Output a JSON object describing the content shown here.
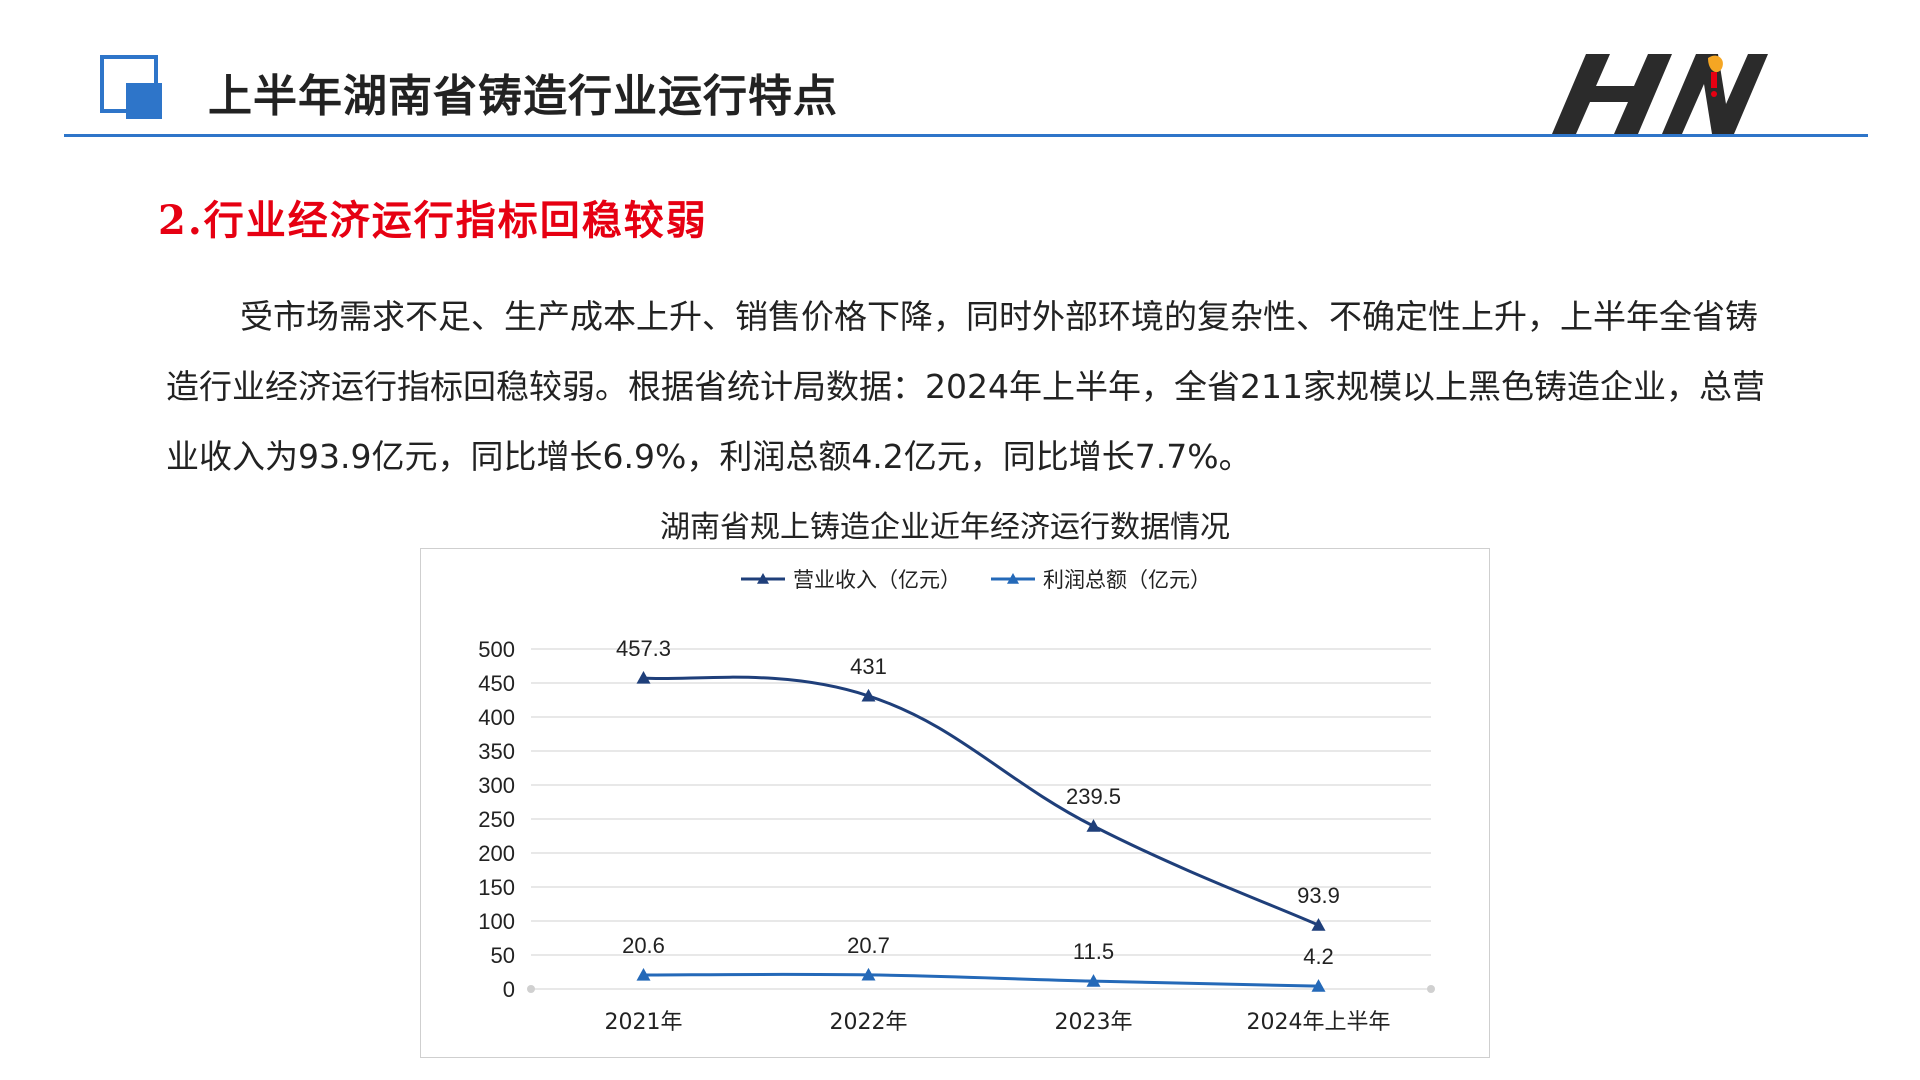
{
  "header": {
    "title": "上半年湖南省铸造行业运行特点",
    "logo_text": "HN"
  },
  "section": {
    "title": "2.行业经济运行指标回稳较弱"
  },
  "paragraph": {
    "text": "受市场需求不足、生产成本上升、销售价格下降，同时外部环境的复杂性、不确定性上升，上半年全省铸造行业经济运行指标回稳较弱。根据省统计局数据：2024年上半年，全省211家规模以上黑色铸造企业，总营业收入为93.9亿元，同比增长6.9%，利润总额4.2亿元，同比增长7.7%。"
  },
  "colors": {
    "accent": "#2e75c9",
    "section_title": "#e60012",
    "revenue_series": "#1f3f7a",
    "profit_series": "#2469b8"
  },
  "chart_data": {
    "type": "line",
    "title": "湖南省规上铸造企业近年经济运行数据情况",
    "categories": [
      "2021年",
      "2022年",
      "2023年",
      "2024年上半年"
    ],
    "series": [
      {
        "name": "营业收入（亿元）",
        "values": [
          457.3,
          431,
          239.5,
          93.9
        ],
        "labels": [
          "457.3",
          "431",
          "239.5",
          "93.9"
        ]
      },
      {
        "name": "利润总额（亿元）",
        "values": [
          20.6,
          20.7,
          11.5,
          4.2
        ],
        "labels": [
          "20.6",
          "20.7",
          "11.5",
          "4.2"
        ]
      }
    ],
    "ylim": [
      0,
      500
    ],
    "yticks": [
      0,
      50,
      100,
      150,
      200,
      250,
      300,
      350,
      400,
      450,
      500
    ],
    "grid": true,
    "legend": "top-center",
    "smooth": true,
    "marker": "triangle",
    "xlabel": "",
    "ylabel": ""
  }
}
